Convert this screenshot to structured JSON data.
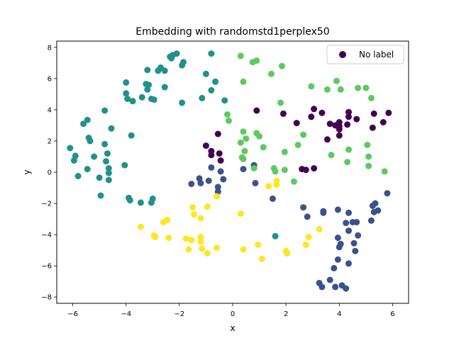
{
  "chart_data": {
    "type": "scatter",
    "title": "Embedding with randomstd1perplex50",
    "xlabel": "x",
    "ylabel": "y",
    "xlim": [
      -6.6,
      6.6
    ],
    "ylim": [
      -8.4,
      8.4
    ],
    "xticks": [
      -6,
      -4,
      -2,
      0,
      2,
      4,
      6
    ],
    "yticks": [
      -8,
      -6,
      -4,
      -2,
      0,
      2,
      4,
      6,
      8
    ],
    "xtick_labels": [
      "−6",
      "−4",
      "−2",
      "0",
      "2",
      "4",
      "6"
    ],
    "ytick_labels": [
      "−8",
      "−6",
      "−4",
      "−2",
      "0",
      "2",
      "4",
      "6",
      "8"
    ],
    "grid": false,
    "legend": {
      "position": "top-right",
      "label": "No label",
      "marker_color": "#440154"
    },
    "colormap": "viridis",
    "series": [
      {
        "color": "#440154",
        "points": [
          [
            0.9,
            3.95
          ],
          [
            1.9,
            3.75
          ],
          [
            2.4,
            3.15
          ],
          [
            2.95,
            3.55
          ],
          [
            3.05,
            4.05
          ],
          [
            3.35,
            3.8
          ],
          [
            3.65,
            3.1
          ],
          [
            3.85,
            3.0
          ],
          [
            4.0,
            2.75
          ],
          [
            4.0,
            2.95
          ],
          [
            4.0,
            3.2
          ],
          [
            4.3,
            3.05
          ],
          [
            4.35,
            3.85
          ],
          [
            4.35,
            3.55
          ],
          [
            4.65,
            3.4
          ],
          [
            5.25,
            2.85
          ],
          [
            5.3,
            3.75
          ],
          [
            5.65,
            3.2
          ],
          [
            5.85,
            3.8
          ],
          [
            4.0,
            2.35
          ],
          [
            3.55,
            2.1
          ],
          [
            2.6,
            0.2
          ],
          [
            2.75,
            0.15
          ],
          [
            3.05,
            0.25
          ],
          [
            -0.55,
            2.45
          ],
          [
            -1.0,
            1.7
          ],
          [
            -0.8,
            1.35
          ],
          [
            -0.8,
            1.1
          ],
          [
            -0.5,
            1.2
          ],
          [
            -0.45,
            0.75
          ]
        ]
      },
      {
        "color": "#3b528b",
        "points": [
          [
            -0.8,
            0.3
          ],
          [
            -0.45,
            0.05
          ],
          [
            -0.35,
            -0.45
          ],
          [
            -0.55,
            -0.95
          ],
          [
            -0.55,
            -1.25
          ],
          [
            -1.25,
            -0.4
          ],
          [
            -1.2,
            -0.7
          ],
          [
            -1.55,
            -0.75
          ],
          [
            -0.9,
            -0.55
          ],
          [
            0.4,
            0.2
          ],
          [
            0.8,
            0.45
          ],
          [
            0.85,
            -0.7
          ],
          [
            1.5,
            -1.7
          ],
          [
            2.65,
            -2.25
          ],
          [
            2.8,
            -2.85
          ],
          [
            3.4,
            -2.5
          ],
          [
            3.4,
            -2.6
          ],
          [
            3.95,
            -2.4
          ],
          [
            4.35,
            -2.6
          ],
          [
            4.25,
            -3.25
          ],
          [
            4.5,
            -3.2
          ],
          [
            4.65,
            -3.2
          ],
          [
            4.35,
            -3.75
          ],
          [
            4.7,
            -4.05
          ],
          [
            5.2,
            -3.1
          ],
          [
            5.3,
            -2.55
          ],
          [
            5.25,
            -2.15
          ],
          [
            5.35,
            -2.0
          ],
          [
            5.45,
            -2.45
          ],
          [
            5.8,
            -1.35
          ],
          [
            3.95,
            -4.2
          ],
          [
            4.05,
            -4.6
          ],
          [
            4.0,
            -4.8
          ],
          [
            3.95,
            -5.6
          ],
          [
            4.55,
            -4.55
          ],
          [
            4.6,
            -5.05
          ],
          [
            4.35,
            -5.85
          ],
          [
            3.8,
            -6.15
          ],
          [
            3.25,
            -7.1
          ],
          [
            3.35,
            -7.35
          ],
          [
            3.65,
            -6.9
          ],
          [
            3.85,
            -7.35
          ],
          [
            4.1,
            -7.25
          ],
          [
            4.25,
            -7.45
          ]
        ]
      },
      {
        "color": "#21918c",
        "points": [
          [
            -6.1,
            1.55
          ],
          [
            -5.95,
            0.75
          ],
          [
            -5.9,
            1.05
          ],
          [
            -5.8,
            -0.25
          ],
          [
            -5.6,
            3.1
          ],
          [
            -5.45,
            3.35
          ],
          [
            -5.4,
            2.2
          ],
          [
            -5.35,
            2.0
          ],
          [
            -5.45,
            0.2
          ],
          [
            -5.2,
            1.0
          ],
          [
            -5.0,
            -0.35
          ],
          [
            -4.95,
            -1.5
          ],
          [
            -4.8,
            3.95
          ],
          [
            -4.8,
            1.8
          ],
          [
            -4.75,
            0.7
          ],
          [
            -4.65,
            0.25
          ],
          [
            -4.65,
            -0.05
          ],
          [
            -4.65,
            -0.5
          ],
          [
            -4.7,
            1.2
          ],
          [
            -4.55,
            2.8
          ],
          [
            -4.05,
            0.45
          ],
          [
            -3.9,
            -1.65
          ],
          [
            -3.85,
            -1.8
          ],
          [
            -3.45,
            -1.95
          ],
          [
            -3.0,
            -1.7
          ],
          [
            -3.05,
            -1.95
          ],
          [
            -3.8,
            2.35
          ],
          [
            -4.0,
            5.75
          ],
          [
            -4.0,
            5.05
          ],
          [
            -3.95,
            4.7
          ],
          [
            -3.75,
            4.55
          ],
          [
            -3.4,
            4.8
          ],
          [
            -3.15,
            5.6
          ],
          [
            -3.05,
            4.7
          ],
          [
            -2.95,
            4.65
          ],
          [
            -3.25,
            5.65
          ],
          [
            -2.8,
            6.5
          ],
          [
            -2.7,
            6.7
          ],
          [
            -2.55,
            6.5
          ],
          [
            -2.55,
            5.45
          ],
          [
            -2.3,
            7.3
          ],
          [
            -2.25,
            7.5
          ],
          [
            -2.1,
            7.6
          ],
          [
            -1.9,
            6.85
          ],
          [
            -1.85,
            7.05
          ],
          [
            -1.9,
            4.45
          ],
          [
            -1.15,
            4.75
          ],
          [
            -1.0,
            6.3
          ],
          [
            -0.8,
            5.25
          ],
          [
            -0.65,
            5.8
          ],
          [
            -0.3,
            4.6
          ],
          [
            -0.8,
            7.6
          ],
          [
            -3.2,
            6.55
          ],
          [
            -3.2,
            5.3
          ],
          [
            -2.35,
            7.4
          ],
          [
            1.6,
            -4.1
          ]
        ]
      },
      {
        "color": "#5ec962",
        "points": [
          0,
          0,
          [
            0.3,
            7.45
          ],
          [
            0.75,
            7.05
          ],
          [
            0.9,
            7.15
          ],
          [
            1.45,
            6.3
          ],
          [
            1.85,
            6.8
          ],
          [
            1.8,
            4.45
          ],
          [
            0.4,
            5.8
          ],
          [
            -0.2,
            3.7
          ],
          [
            -0.15,
            3.3
          ],
          [
            0.4,
            2.6
          ],
          [
            0.3,
            1.9
          ],
          [
            0.5,
            2.15
          ],
          [
            0.9,
            2.5
          ],
          [
            1.0,
            2.3
          ],
          [
            1.15,
            1.6
          ],
          [
            0.45,
            1.35
          ],
          [
            0.35,
            0.95
          ],
          [
            0.4,
            0.85
          ],
          [
            0.8,
            0.25
          ],
          [
            1.55,
            0.25
          ],
          [
            1.6,
            0.05
          ],
          [
            1.95,
            0.15
          ],
          [
            1.95,
            1.3
          ],
          [
            2.45,
            1.75
          ],
          [
            2.65,
            2.4
          ],
          [
            2.95,
            5.5
          ],
          [
            3.55,
            5.3
          ],
          [
            3.9,
            5.85
          ],
          [
            4.05,
            5.3
          ],
          [
            4.7,
            5.4
          ],
          [
            5.0,
            5.4
          ],
          [
            5.2,
            4.75
          ],
          [
            5.05,
            1.75
          ],
          [
            5.1,
            0.4
          ],
          [
            5.1,
            1.0
          ],
          [
            5.7,
            0.05
          ],
          [
            4.35,
            1.45
          ],
          [
            4.3,
            0.65
          ],
          [
            3.7,
            1.1
          ],
          [
            2.3,
            -0.6
          ]
        ]
      },
      {
        "color": "#fde725",
        "points": [
          [
            -3.45,
            -3.5
          ],
          [
            -2.95,
            -4.05
          ],
          [
            -2.9,
            -4.15
          ],
          [
            -2.6,
            -3.2
          ],
          [
            -2.45,
            -3.05
          ],
          [
            -2.4,
            -4.2
          ],
          [
            -1.75,
            -4.25
          ],
          [
            -1.65,
            -4.95
          ],
          [
            -1.55,
            -4.35
          ],
          [
            -1.5,
            -2.25
          ],
          [
            -1.45,
            -2.7
          ],
          [
            -1.2,
            -4.15
          ],
          [
            -1.2,
            -4.45
          ],
          [
            -1.15,
            -4.9
          ],
          [
            -1.2,
            -2.95
          ],
          [
            -0.95,
            -5.2
          ],
          [
            -0.95,
            -2.2
          ],
          [
            -0.6,
            -4.85
          ],
          [
            -0.6,
            -1.55
          ],
          [
            0.3,
            -2.65
          ],
          [
            0.4,
            -4.95
          ],
          [
            0.95,
            -4.65
          ],
          [
            1.1,
            -5.55
          ],
          [
            1.35,
            -0.9
          ],
          [
            1.65,
            -0.8
          ],
          [
            1.65,
            -0.55
          ],
          [
            2.0,
            -5.05
          ],
          [
            2.05,
            -5.2
          ],
          [
            2.75,
            -4.65
          ],
          [
            2.85,
            -4.15
          ],
          [
            3.25,
            -3.65
          ]
        ]
      }
    ]
  }
}
